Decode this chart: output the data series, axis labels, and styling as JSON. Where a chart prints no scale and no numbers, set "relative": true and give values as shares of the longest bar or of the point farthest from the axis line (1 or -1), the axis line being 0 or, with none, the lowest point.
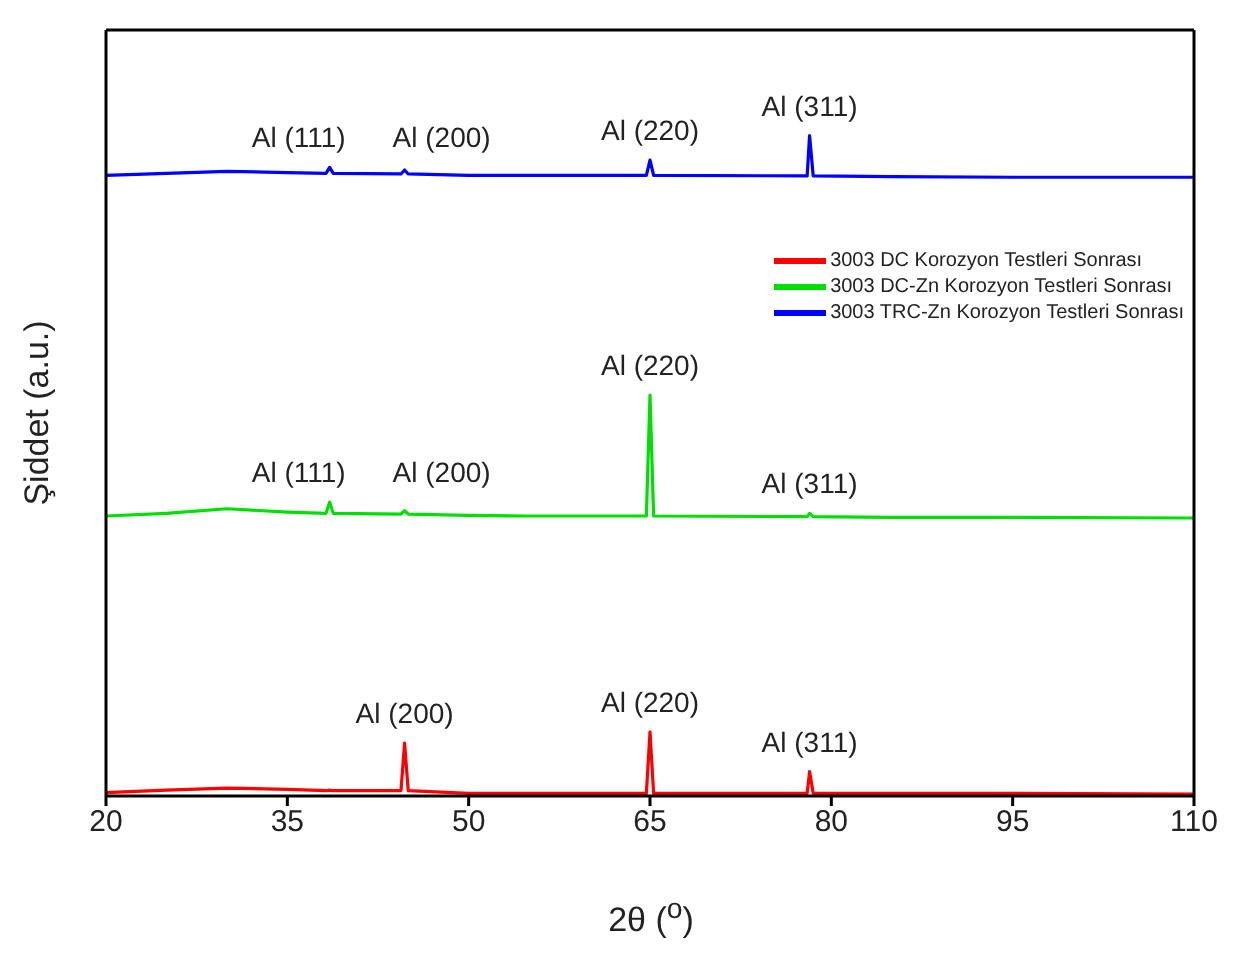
{
  "chart_data": {
    "type": "line",
    "relative": true,
    "xlabel": "2θ ($^{o}$)",
    "ylabel": "Şiddet (a.u.)",
    "x": [
      20,
      25,
      30,
      35,
      38.2,
      38.5,
      38.8,
      44.4,
      44.7,
      45,
      50,
      55,
      64.7,
      65,
      65.3,
      78,
      78.2,
      78.5,
      85,
      95,
      110
    ],
    "xlim": [
      20,
      110
    ],
    "xticks": [
      20,
      35,
      50,
      65,
      80,
      95,
      110
    ],
    "grid": false,
    "legend": "top right",
    "marker": "none",
    "line_style": "solid",
    "series": [
      {
        "name": "3003 DC Korozyon Testleri Sonrası",
        "color": "#ff0000",
        "values": [
          0.005,
          0.009,
          0.012,
          0.01,
          0.008,
          0.009,
          0.008,
          0.008,
          0.08,
          0.008,
          0.004,
          0.004,
          0.004,
          0.097,
          0.004,
          0.004,
          0.037,
          0.004,
          0.004,
          0.004,
          0.003
        ]
      },
      {
        "name": "3003 DC-Zn Korozyon Testleri Sonrası",
        "color": "#00e000",
        "values": [
          0.424,
          0.428,
          0.435,
          0.43,
          0.428,
          0.445,
          0.428,
          0.427,
          0.432,
          0.427,
          0.425,
          0.424,
          0.424,
          0.607,
          0.424,
          0.423,
          0.428,
          0.423,
          0.422,
          0.422,
          0.421
        ]
      },
      {
        "name": "3003 TRC-Zn Korozyon Testleri Sonrası",
        "color": "#0000ff",
        "values": [
          0.94,
          0.943,
          0.946,
          0.944,
          0.943,
          0.952,
          0.943,
          0.942,
          0.948,
          0.942,
          0.94,
          0.94,
          0.94,
          0.963,
          0.94,
          0.939,
          1.0,
          0.939,
          0.938,
          0.937,
          0.937
        ]
      }
    ],
    "annotations": [
      {
        "text": "Al (111)",
        "x": 38.5,
        "y": 0.952
      },
      {
        "text": "Al (200)",
        "x": 44.7,
        "y": 0.952
      },
      {
        "text": "Al (220)",
        "x": 65,
        "y": 0.963
      },
      {
        "text": "Al (311)",
        "x": 78.2,
        "y": 1.0
      },
      {
        "text": "Al (111)",
        "x": 38.5,
        "y": 0.445
      },
      {
        "text": "Al (200)",
        "x": 44.7,
        "y": 0.445
      },
      {
        "text": "Al (220)",
        "x": 65,
        "y": 0.607
      },
      {
        "text": "Al (311)",
        "x": 78.2,
        "y": 0.428
      },
      {
        "text": "Al (200)",
        "x": 44.7,
        "y": 0.08
      },
      {
        "text": "Al (220)",
        "x": 65,
        "y": 0.097
      },
      {
        "text": "Al (311)",
        "x": 78.2,
        "y": 0.037
      }
    ]
  }
}
